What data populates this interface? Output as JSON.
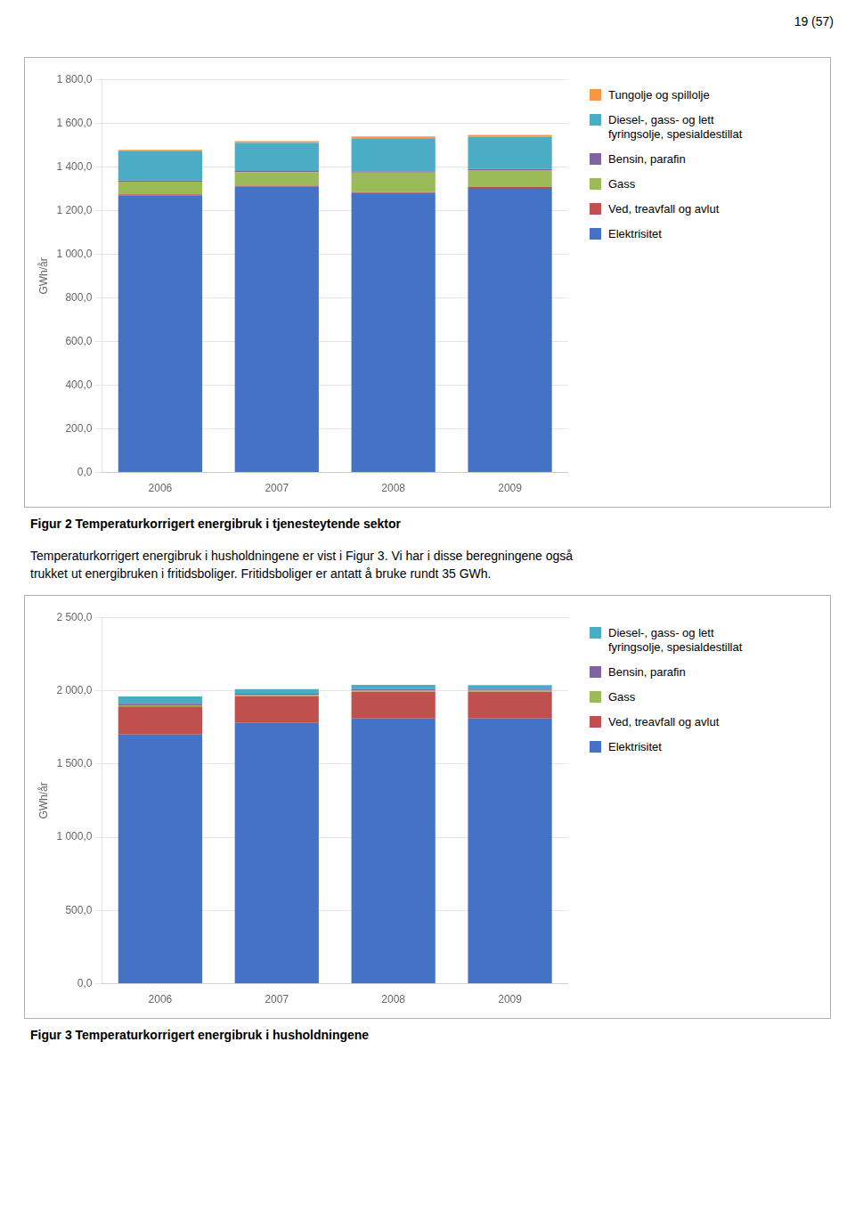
{
  "chart_data": [
    {
      "type": "bar",
      "title": "Figur 2 Temperaturkorrigert energibruk i tjenesteytende sektor",
      "annotations": [
        "19 (57)"
      ],
      "categories": [
        "2006",
        "2007",
        "2008",
        "2009"
      ],
      "y_label": "GWh/år",
      "stacked": true,
      "grid": true,
      "legend": "right",
      "series": [
        {
          "name": "Elektrisitet",
          "color": "#4472C4",
          "values": [
            1270,
            1310,
            1280,
            1303
          ]
        },
        {
          "name": "Ved, treavfall og avlut",
          "color": "#C0504D",
          "values": [
            4,
            4,
            4,
            4
          ]
        },
        {
          "name": "Gass",
          "color": "#9BBB59",
          "values": [
            58,
            62,
            90,
            78
          ]
        },
        {
          "name": "Bensin, parafin",
          "color": "#8064A2",
          "values": [
            5,
            5,
            5,
            5
          ]
        },
        {
          "name": "Diesel-, gass- og lett\nfyringsolje, spesialdestillat",
          "color": "#4BACC6",
          "values": [
            133,
            128,
            152,
            148
          ]
        },
        {
          "name": "Tungolje og spillolje",
          "color": "#F79646",
          "values": [
            8,
            8,
            8,
            8
          ]
        }
      ],
      "ylim": [
        0,
        1800
      ],
      "yticks": [
        {
          "value": 0,
          "label": "0,0"
        },
        {
          "value": 200,
          "label": "200,0"
        },
        {
          "value": 400,
          "label": "400,0"
        },
        {
          "value": 600,
          "label": "600,0"
        },
        {
          "value": 800,
          "label": "800,0"
        },
        {
          "value": 1000,
          "label": "1 000,0"
        },
        {
          "value": 1200,
          "label": "1 200,0"
        },
        {
          "value": 1400,
          "label": "1 400,0"
        },
        {
          "value": 1600,
          "label": "1 600,0"
        },
        {
          "value": 1800,
          "label": "1 800,0"
        }
      ]
    },
    {
      "type": "bar",
      "title": "Figur 3 Temperaturkorrigert energibruk i husholdningene",
      "annotations": [
        "Temperaturkorrigert energibruk i husholdningene er vist i Figur 3. Vi har i disse beregningene også",
        "trukket ut energibruken i fritidsboliger. Fritidsboliger er antatt å bruke rundt 35 GWh."
      ],
      "categories": [
        "2006",
        "2007",
        "2008",
        "2009"
      ],
      "y_label": "GWh/år",
      "stacked": true,
      "grid": true,
      "legend": "right",
      "series": [
        {
          "name": "Elektrisitet",
          "color": "#4472C4",
          "values": [
            1700,
            1780,
            1810,
            1810
          ]
        },
        {
          "name": "Ved, treavfall og avlut",
          "color": "#C0504D",
          "values": [
            192,
            182,
            182,
            182
          ]
        },
        {
          "name": "Gass",
          "color": "#9BBB59",
          "values": [
            8,
            8,
            8,
            8
          ]
        },
        {
          "name": "Bensin, parafin",
          "color": "#8064A2",
          "values": [
            10,
            8,
            10,
            8
          ]
        },
        {
          "name": "Diesel-, gass- og lett\nfyringsolje, spesialdestillat",
          "color": "#4BACC6",
          "values": [
            50,
            33,
            30,
            30
          ]
        }
      ],
      "ylim": [
        0,
        2500
      ],
      "yticks": [
        {
          "value": 0,
          "label": "0,0"
        },
        {
          "value": 500,
          "label": "500,0"
        },
        {
          "value": 1000,
          "label": "1 000,0"
        },
        {
          "value": 1500,
          "label": "1 500,0"
        },
        {
          "value": 2000,
          "label": "2 000,0"
        },
        {
          "value": 2500,
          "label": "2 500,0"
        }
      ]
    }
  ]
}
